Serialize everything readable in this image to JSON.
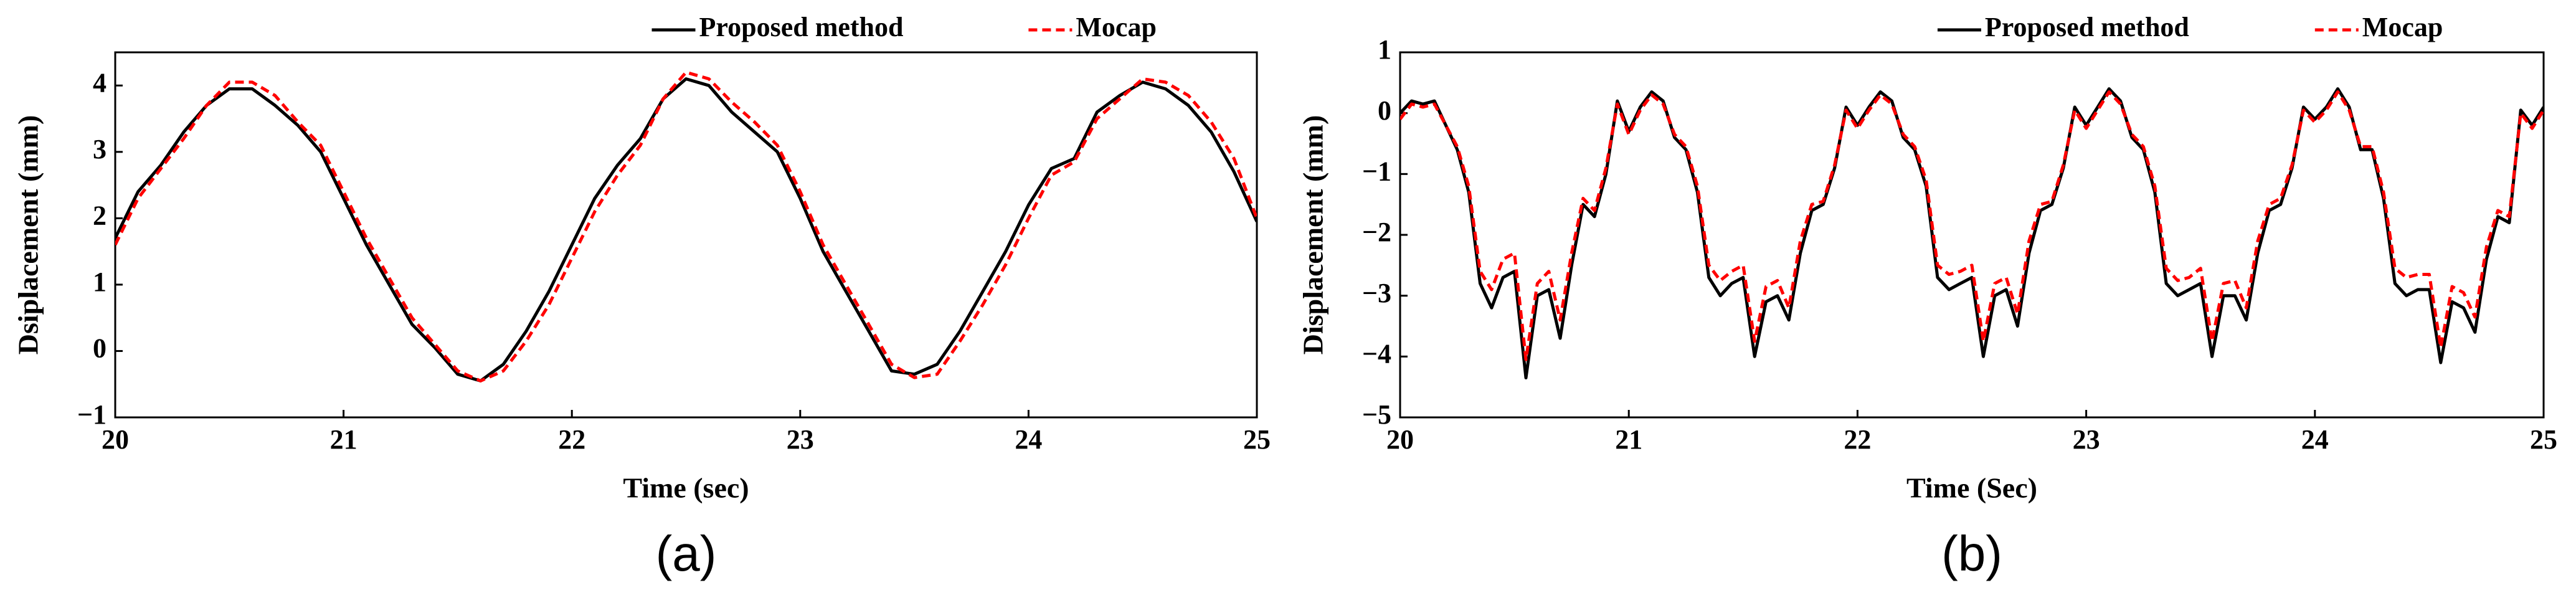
{
  "chart_data": [
    {
      "type": "line",
      "caption": "(a)",
      "xlabel": "Time (sec)",
      "ylabel": "Dsiplacement (mm)",
      "xlim": [
        20,
        25
      ],
      "ylim": [
        -1,
        4.5
      ],
      "xticks": [
        20,
        21,
        22,
        23,
        24,
        25
      ],
      "yticks": [
        {
          "value": -1,
          "label": "−1"
        },
        0,
        1,
        2,
        3,
        4
      ],
      "x": [
        20.0,
        20.1,
        20.2,
        20.3,
        20.4,
        20.5,
        20.6,
        20.7,
        20.8,
        20.9,
        21.0,
        21.1,
        21.2,
        21.3,
        21.4,
        21.5,
        21.6,
        21.7,
        21.8,
        21.9,
        22.0,
        22.1,
        22.2,
        22.3,
        22.4,
        22.5,
        22.6,
        22.7,
        22.8,
        22.9,
        23.0,
        23.1,
        23.2,
        23.3,
        23.4,
        23.5,
        23.6,
        23.7,
        23.8,
        23.9,
        24.0,
        24.1,
        24.2,
        24.3,
        24.4,
        24.5,
        24.6,
        24.7,
        24.8,
        24.9,
        25.0
      ],
      "series": [
        {
          "name": "Proposed method",
          "color": "#000000",
          "dash": "solid",
          "values": [
            1.7,
            2.4,
            2.8,
            3.3,
            3.7,
            3.95,
            3.95,
            3.7,
            3.4,
            3.0,
            2.3,
            1.6,
            1.0,
            0.4,
            0.05,
            -0.35,
            -0.45,
            -0.2,
            0.3,
            0.9,
            1.6,
            2.3,
            2.8,
            3.2,
            3.8,
            4.1,
            4.0,
            3.6,
            3.3,
            3.0,
            2.3,
            1.5,
            0.9,
            0.3,
            -0.3,
            -0.35,
            -0.2,
            0.3,
            0.9,
            1.5,
            2.2,
            2.75,
            2.9,
            3.6,
            3.85,
            4.05,
            3.95,
            3.7,
            3.3,
            2.7,
            1.95
          ]
        },
        {
          "name": "Mocap",
          "color": "#ff0000",
          "dash": "dashed",
          "values": [
            1.6,
            2.3,
            2.75,
            3.2,
            3.7,
            4.05,
            4.05,
            3.85,
            3.45,
            3.1,
            2.4,
            1.7,
            1.1,
            0.5,
            0.1,
            -0.3,
            -0.45,
            -0.3,
            0.15,
            0.7,
            1.4,
            2.1,
            2.65,
            3.1,
            3.8,
            4.2,
            4.1,
            3.75,
            3.45,
            3.1,
            2.4,
            1.6,
            1.0,
            0.4,
            -0.2,
            -0.4,
            -0.35,
            0.15,
            0.7,
            1.3,
            2.0,
            2.65,
            2.85,
            3.5,
            3.8,
            4.1,
            4.05,
            3.85,
            3.45,
            2.9,
            2.0
          ]
        }
      ]
    },
    {
      "type": "line",
      "caption": "(b)",
      "xlabel": "Time (Sec)",
      "ylabel": "Displacement (mm)",
      "xlim": [
        20,
        25
      ],
      "ylim": [
        -5,
        1
      ],
      "xticks": [
        20,
        21,
        22,
        23,
        24,
        25
      ],
      "yticks": [
        {
          "value": -5,
          "label": "−5"
        },
        {
          "value": -4,
          "label": "−4"
        },
        {
          "value": -3,
          "label": "−3"
        },
        {
          "value": -2,
          "label": "−2"
        },
        {
          "value": -1,
          "label": "−1"
        },
        0,
        1
      ],
      "x": [
        20.0,
        20.05,
        20.1,
        20.15,
        20.2,
        20.25,
        20.3,
        20.35,
        20.4,
        20.45,
        20.5,
        20.55,
        20.6,
        20.65,
        20.7,
        20.75,
        20.8,
        20.85,
        20.9,
        20.95,
        21.0,
        21.05,
        21.1,
        21.15,
        21.2,
        21.25,
        21.3,
        21.35,
        21.4,
        21.45,
        21.5,
        21.55,
        21.6,
        21.65,
        21.7,
        21.75,
        21.8,
        21.85,
        21.9,
        21.95,
        22.0,
        22.05,
        22.1,
        22.15,
        22.2,
        22.25,
        22.3,
        22.35,
        22.4,
        22.45,
        22.5,
        22.55,
        22.6,
        22.65,
        22.7,
        22.75,
        22.8,
        22.85,
        22.9,
        22.95,
        23.0,
        23.05,
        23.1,
        23.15,
        23.2,
        23.25,
        23.3,
        23.35,
        23.4,
        23.45,
        23.5,
        23.55,
        23.6,
        23.65,
        23.7,
        23.75,
        23.8,
        23.85,
        23.9,
        23.95,
        24.0,
        24.05,
        24.1,
        24.15,
        24.2,
        24.25,
        24.3,
        24.35,
        24.4,
        24.45,
        24.5,
        24.55,
        24.6,
        24.65,
        24.7,
        24.75,
        24.8,
        24.85,
        24.9,
        24.95,
        25.0
      ],
      "series": [
        {
          "name": "Proposed method",
          "color": "#000000",
          "dash": "solid",
          "values": [
            0.0,
            0.2,
            0.15,
            0.2,
            -0.2,
            -0.6,
            -1.3,
            -2.8,
            -3.2,
            -2.7,
            -2.6,
            -4.35,
            -3.0,
            -2.9,
            -3.7,
            -2.5,
            -1.5,
            -1.7,
            -1.0,
            0.2,
            -0.3,
            0.1,
            0.35,
            0.2,
            -0.4,
            -0.6,
            -1.3,
            -2.7,
            -3.0,
            -2.8,
            -2.7,
            -4.0,
            -3.1,
            -3.0,
            -3.4,
            -2.3,
            -1.6,
            -1.5,
            -0.9,
            0.1,
            -0.2,
            0.1,
            0.35,
            0.2,
            -0.4,
            -0.6,
            -1.2,
            -2.7,
            -2.9,
            -2.8,
            -2.7,
            -4.0,
            -3.0,
            -2.9,
            -3.5,
            -2.3,
            -1.6,
            -1.5,
            -0.9,
            0.1,
            -0.2,
            0.1,
            0.4,
            0.2,
            -0.4,
            -0.6,
            -1.3,
            -2.8,
            -3.0,
            -2.9,
            -2.8,
            -4.0,
            -3.0,
            -3.0,
            -3.4,
            -2.3,
            -1.6,
            -1.5,
            -0.9,
            0.1,
            -0.1,
            0.1,
            0.4,
            0.1,
            -0.6,
            -0.6,
            -1.4,
            -2.8,
            -3.0,
            -2.9,
            -2.9,
            -4.1,
            -3.1,
            -3.2,
            -3.6,
            -2.4,
            -1.7,
            -1.8,
            0.05,
            -0.2,
            0.1
          ]
        },
        {
          "name": "Mocap",
          "color": "#ff0000",
          "dash": "dashed",
          "values": [
            -0.1,
            0.15,
            0.1,
            0.15,
            -0.2,
            -0.55,
            -1.2,
            -2.6,
            -2.9,
            -2.4,
            -2.3,
            -4.05,
            -2.8,
            -2.6,
            -3.4,
            -2.3,
            -1.4,
            -1.6,
            -0.9,
            0.15,
            -0.35,
            0.05,
            0.3,
            0.15,
            -0.35,
            -0.55,
            -1.2,
            -2.5,
            -2.75,
            -2.6,
            -2.5,
            -3.75,
            -2.85,
            -2.75,
            -3.2,
            -2.1,
            -1.5,
            -1.45,
            -0.85,
            0.05,
            -0.25,
            0.05,
            0.3,
            0.15,
            -0.35,
            -0.55,
            -1.1,
            -2.5,
            -2.65,
            -2.6,
            -2.5,
            -3.75,
            -2.8,
            -2.7,
            -3.3,
            -2.1,
            -1.5,
            -1.45,
            -0.85,
            0.05,
            -0.25,
            0.05,
            0.35,
            0.15,
            -0.35,
            -0.55,
            -1.2,
            -2.55,
            -2.75,
            -2.7,
            -2.55,
            -3.75,
            -2.8,
            -2.75,
            -3.2,
            -2.1,
            -1.5,
            -1.4,
            -0.85,
            0.05,
            -0.15,
            0.05,
            0.35,
            0.05,
            -0.55,
            -0.55,
            -1.3,
            -2.55,
            -2.7,
            -2.65,
            -2.65,
            -3.85,
            -2.85,
            -2.95,
            -3.35,
            -2.2,
            -1.6,
            -1.7,
            0.0,
            -0.25,
            0.05
          ]
        }
      ]
    }
  ]
}
